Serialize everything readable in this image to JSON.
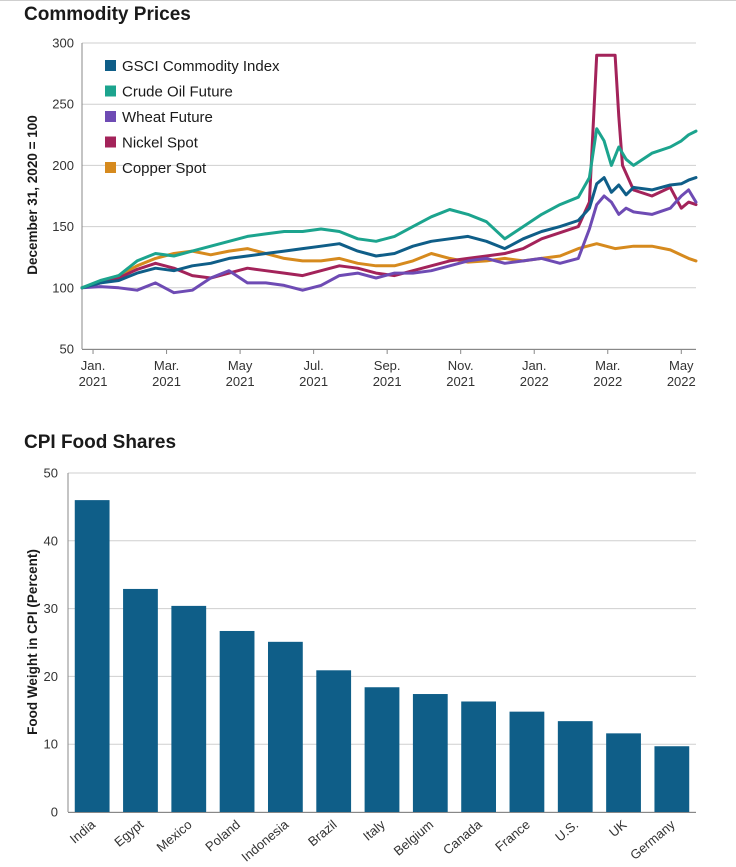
{
  "chart_data": [
    {
      "type": "line",
      "title": "Commodity Prices",
      "ylabel": "December 31, 2020 = 100",
      "xlabel": "",
      "ylim": [
        50,
        300
      ],
      "yticks": [
        50,
        100,
        150,
        200,
        250,
        300
      ],
      "xlim_months": [
        0,
        16.7
      ],
      "xticks": [
        {
          "line1": "Jan.",
          "line2": "2021",
          "m": 0.3
        },
        {
          "line1": "Mar.",
          "line2": "2021",
          "m": 2.3
        },
        {
          "line1": "May",
          "line2": "2021",
          "m": 4.3
        },
        {
          "line1": "Jul.",
          "line2": "2021",
          "m": 6.3
        },
        {
          "line1": "Sep.",
          "line2": "2021",
          "m": 8.3
        },
        {
          "line1": "Nov.",
          "line2": "2021",
          "m": 10.3
        },
        {
          "line1": "Jan.",
          "line2": "2022",
          "m": 12.3
        },
        {
          "line1": "Mar.",
          "line2": "2022",
          "m": 14.3
        },
        {
          "line1": "May",
          "line2": "2022",
          "m": 16.3
        }
      ],
      "legend_position": "top-left",
      "series": [
        {
          "name": "Copper Spot",
          "color": "#d68a1e",
          "x": [
            0,
            0.5,
            1,
            1.5,
            2,
            2.5,
            3,
            3.5,
            4,
            4.5,
            5,
            5.5,
            6,
            6.5,
            7,
            7.5,
            8,
            8.5,
            9,
            9.5,
            10,
            10.5,
            11,
            11.5,
            12,
            12.5,
            13,
            13.5,
            14,
            14.5,
            15,
            15.5,
            16,
            16.5,
            16.7
          ],
          "y": [
            100,
            105,
            110,
            118,
            124,
            128,
            130,
            127,
            130,
            132,
            128,
            124,
            122,
            122,
            124,
            120,
            118,
            118,
            122,
            128,
            124,
            121,
            122,
            124,
            122,
            124,
            126,
            132,
            136,
            132,
            134,
            134,
            131,
            124,
            122
          ]
        },
        {
          "name": "Nickel Spot",
          "color": "#a3235a",
          "x": [
            0,
            0.5,
            1,
            1.5,
            2,
            2.5,
            3,
            3.5,
            4,
            4.5,
            5,
            5.5,
            6,
            6.5,
            7,
            7.5,
            8,
            8.5,
            9,
            9.5,
            10,
            10.5,
            11,
            11.5,
            12,
            12.5,
            13,
            13.5,
            13.8,
            14,
            14.1,
            14.2,
            14.5,
            14.6,
            14.7,
            15,
            15.5,
            16,
            16.3,
            16.5,
            16.7
          ],
          "y": [
            100,
            104,
            108,
            115,
            120,
            116,
            110,
            108,
            112,
            116,
            114,
            112,
            110,
            114,
            118,
            116,
            112,
            110,
            114,
            118,
            122,
            124,
            126,
            128,
            132,
            140,
            145,
            150,
            170,
            290,
            290,
            290,
            290,
            240,
            200,
            180,
            175,
            182,
            165,
            170,
            168
          ]
        },
        {
          "name": "Wheat Future",
          "color": "#6e4bb4",
          "x": [
            0,
            0.5,
            1,
            1.5,
            2,
            2.5,
            3,
            3.5,
            4,
            4.5,
            5,
            5.5,
            6,
            6.5,
            7,
            7.5,
            8,
            8.5,
            9,
            9.5,
            10,
            10.5,
            11,
            11.5,
            12,
            12.5,
            13,
            13.5,
            13.8,
            14,
            14.2,
            14.4,
            14.6,
            14.8,
            15,
            15.5,
            16,
            16.3,
            16.5,
            16.7
          ],
          "y": [
            100,
            101,
            100,
            98,
            104,
            96,
            98,
            108,
            114,
            104,
            104,
            102,
            98,
            102,
            110,
            112,
            108,
            112,
            112,
            114,
            118,
            122,
            124,
            120,
            122,
            124,
            120,
            124,
            148,
            168,
            175,
            170,
            160,
            165,
            162,
            160,
            165,
            175,
            180,
            170
          ]
        },
        {
          "name": "GSCI Commodity Index",
          "color": "#0f5e88",
          "x": [
            0,
            0.5,
            1,
            1.5,
            2,
            2.5,
            3,
            3.5,
            4,
            4.5,
            5,
            5.5,
            6,
            6.5,
            7,
            7.5,
            8,
            8.5,
            9,
            9.5,
            10,
            10.5,
            11,
            11.5,
            12,
            12.5,
            13,
            13.5,
            13.8,
            14,
            14.2,
            14.4,
            14.6,
            14.8,
            15,
            15.5,
            16,
            16.3,
            16.5,
            16.7
          ],
          "y": [
            100,
            104,
            106,
            112,
            116,
            114,
            118,
            120,
            124,
            126,
            128,
            130,
            132,
            134,
            136,
            130,
            126,
            128,
            134,
            138,
            140,
            142,
            138,
            132,
            140,
            146,
            150,
            155,
            165,
            185,
            190,
            178,
            184,
            176,
            182,
            180,
            184,
            185,
            188,
            190
          ]
        },
        {
          "name": "Crude Oil Future",
          "color": "#1ca48e",
          "x": [
            0,
            0.5,
            1,
            1.5,
            2,
            2.5,
            3,
            3.5,
            4,
            4.5,
            5,
            5.5,
            6,
            6.5,
            7,
            7.5,
            8,
            8.5,
            9,
            9.5,
            10,
            10.5,
            11,
            11.5,
            12,
            12.5,
            13,
            13.5,
            13.8,
            14,
            14.2,
            14.4,
            14.6,
            14.8,
            15,
            15.5,
            16,
            16.3,
            16.5,
            16.7
          ],
          "y": [
            100,
            106,
            110,
            122,
            128,
            126,
            130,
            134,
            138,
            142,
            144,
            146,
            146,
            148,
            146,
            140,
            138,
            142,
            150,
            158,
            164,
            160,
            154,
            140,
            150,
            160,
            168,
            174,
            190,
            230,
            220,
            200,
            215,
            205,
            200,
            210,
            215,
            220,
            225,
            228
          ]
        }
      ]
    },
    {
      "type": "bar",
      "title": "CPI Food Shares",
      "ylabel": "Food Weight in CPI (Percent)",
      "xlabel": "",
      "ylim": [
        0,
        50
      ],
      "yticks": [
        0,
        10,
        20,
        30,
        40,
        50
      ],
      "bar_color": "#0f5e88",
      "categories": [
        "India",
        "Egypt",
        "Mexico",
        "Poland",
        "Indonesia",
        "Brazil",
        "Italy",
        "Belgium",
        "Canada",
        "France",
        "U.S.",
        "UK",
        "Germany"
      ],
      "values": [
        46,
        32.9,
        30.4,
        26.7,
        25.1,
        20.9,
        18.4,
        17.4,
        16.3,
        14.8,
        13.4,
        11.6,
        9.7
      ]
    }
  ]
}
